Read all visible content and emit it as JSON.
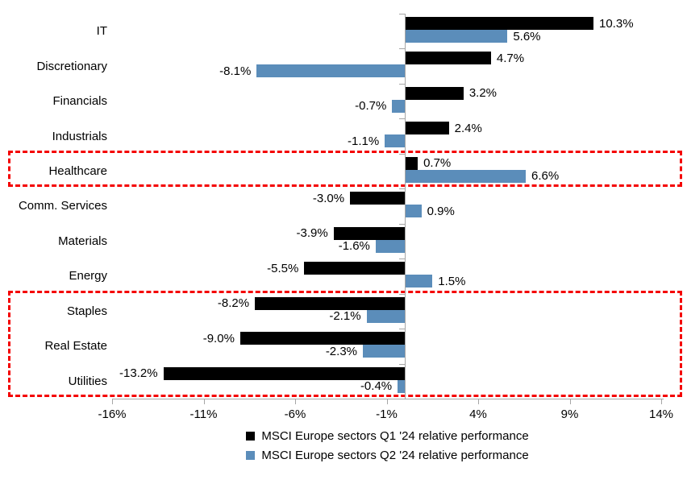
{
  "chart_data": {
    "type": "bar",
    "orientation": "horizontal",
    "categories": [
      "IT",
      "Discretionary",
      "Financials",
      "Industrials",
      "Healthcare",
      "Comm. Services",
      "Materials",
      "Energy",
      "Staples",
      "Real Estate",
      "Utilities"
    ],
    "series": [
      {
        "name": "MSCI Europe sectors Q1 '24 relative performance",
        "color": "#000000",
        "values": [
          10.3,
          4.7,
          3.2,
          2.4,
          0.7,
          -3.0,
          -3.9,
          -5.5,
          -8.2,
          -9.0,
          -13.2
        ]
      },
      {
        "name": "MSCI Europe sectors Q2 '24 relative performance",
        "color": "#5b8dba",
        "values": [
          5.6,
          -8.1,
          -0.7,
          -1.1,
          6.6,
          0.9,
          -1.6,
          1.5,
          -2.1,
          -2.3,
          -0.4
        ]
      }
    ],
    "value_axis": {
      "min": -16,
      "max": 14,
      "tick_step": 5,
      "tick_labels": [
        "-16%",
        "-11%",
        "-6%",
        "-1%",
        "4%",
        "9%",
        "14%"
      ]
    },
    "data_labels": {
      "visible": true,
      "format": "0.0%"
    },
    "gridlines": false,
    "legend_position": "bottom",
    "highlight_boxes": [
      {
        "categories": [
          "Healthcare"
        ],
        "style": "red-dashed"
      },
      {
        "categories": [
          "Staples",
          "Real Estate",
          "Utilities"
        ],
        "style": "red-dashed"
      }
    ],
    "colors": {
      "axis": "#a6a6a6",
      "highlight": "#f40000"
    }
  }
}
